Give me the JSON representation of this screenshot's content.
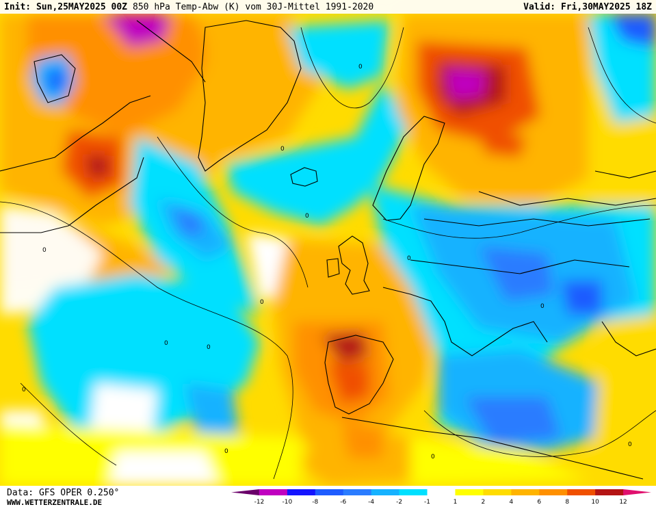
{
  "header": {
    "init": "Init: Sun,25MAY2025 00Z",
    "title": "850 hPa Temp-Abw (K) vom 30J-Mittel 1991-2020",
    "valid": "Valid: Fri,30MAY2025 18Z"
  },
  "footer": {
    "data_source": "Data: GFS OPER 0.250°",
    "website": "WWW.WETTERZENTRALE.DE"
  },
  "legend": {
    "colors": [
      "#6a006a",
      "#c000c0",
      "#1414ff",
      "#1e5cff",
      "#2a7cff",
      "#16b2ff",
      "#00e0ff",
      "#ffffff",
      "#ffff00",
      "#ffdc00",
      "#ffb400",
      "#ff9000",
      "#f05000",
      "#b41414",
      "#e0106e"
    ],
    "ticks": [
      "-12",
      "-10",
      "-8",
      "-6",
      "-4",
      "-2",
      "-1",
      "1",
      "2",
      "4",
      "6",
      "8",
      "10",
      "12"
    ]
  },
  "map": {
    "contour_label": "0"
  }
}
